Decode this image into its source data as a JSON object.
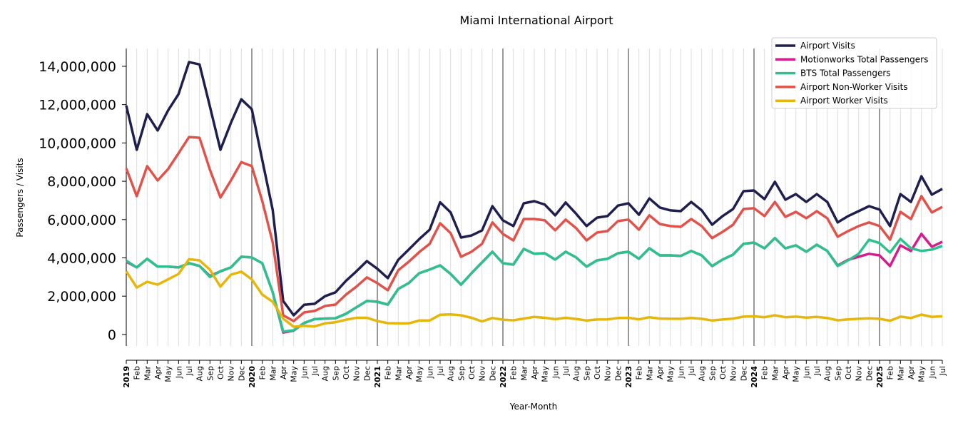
{
  "chart_data": {
    "type": "line",
    "title": "Miami International Airport",
    "xlabel": "Year-Month",
    "ylabel": "Passengers / Visits",
    "ylim": [
      -600000,
      14930000
    ],
    "yticks": [
      0,
      2000000,
      4000000,
      6000000,
      8000000,
      10000000,
      12000000,
      14000000
    ],
    "ytick_labels": [
      "0",
      "2,000,000",
      "4,000,000",
      "6,000,000",
      "8,000,000",
      "10,000,000",
      "12,000,000",
      "14,000,000"
    ],
    "x_start": "2019-01",
    "x_end": "2025-07",
    "x_tick_labels": [
      "2019",
      "Feb",
      "Mar",
      "Apr",
      "May",
      "Jun",
      "Jul",
      "Aug",
      "Sep",
      "Oct",
      "Nov",
      "Dec",
      "2020",
      "Feb",
      "Mar",
      "Apr",
      "May",
      "Jun",
      "Jul",
      "Aug",
      "Sep",
      "Oct",
      "Nov",
      "Dec",
      "2021",
      "Feb",
      "Mar",
      "Apr",
      "May",
      "Jun",
      "Jul",
      "Aug",
      "Sep",
      "Oct",
      "Nov",
      "Dec",
      "2022",
      "Feb",
      "Mar",
      "Apr",
      "May",
      "Jun",
      "Jul",
      "Aug",
      "Sep",
      "Oct",
      "Nov",
      "Dec",
      "2023",
      "Feb",
      "Mar",
      "Apr",
      "May",
      "Jun",
      "Jul",
      "Aug",
      "Sep",
      "Oct",
      "Nov",
      "Dec",
      "2024",
      "Feb",
      "Mar",
      "Apr",
      "May",
      "Jun",
      "Jul",
      "Aug",
      "Sep",
      "Oct",
      "Nov",
      "Dec",
      "2025",
      "Feb",
      "Mar",
      "Apr",
      "May",
      "Jun",
      "Jul"
    ],
    "grid": "vertical monthly, year separators",
    "legend_position": "top-right",
    "series": [
      {
        "name": "Airport Visits",
        "color": "#1f1f4f",
        "values": [
          11950000,
          9640000,
          11500000,
          10650000,
          11700000,
          12550000,
          14220000,
          14100000,
          11900000,
          9640000,
          11050000,
          12280000,
          11760000,
          9100000,
          6500000,
          1750000,
          1000000,
          1550000,
          1600000,
          2000000,
          2200000,
          2800000,
          3300000,
          3830000,
          3430000,
          2940000,
          3900000,
          4430000,
          4980000,
          5470000,
          6900000,
          6370000,
          5060000,
          5170000,
          5430000,
          6700000,
          5960000,
          5660000,
          6850000,
          6960000,
          6780000,
          6220000,
          6890000,
          6300000,
          5660000,
          6100000,
          6180000,
          6730000,
          6850000,
          6250000,
          7100000,
          6630000,
          6480000,
          6440000,
          6920000,
          6480000,
          5730000,
          6180000,
          6550000,
          7480000,
          7520000,
          7070000,
          7970000,
          7040000,
          7330000,
          6920000,
          7330000,
          6920000,
          5850000,
          6180000,
          6440000,
          6700000,
          6520000,
          5660000,
          7330000,
          6920000,
          8260000,
          7300000,
          7600000
        ]
      },
      {
        "name": "Motionworks Total Passengers",
        "color": "#d81b8c",
        "values": [
          3800000,
          3500000,
          3950000,
          3540000,
          3540000,
          3500000,
          3720000,
          3580000,
          3050000,
          3300000,
          3500000,
          4060000,
          4020000,
          3720000,
          2200000,
          100000,
          200000,
          600000,
          800000,
          830000,
          850000,
          1080000,
          1420000,
          1750000,
          1710000,
          1560000,
          2380000,
          2680000,
          3200000,
          3390000,
          3610000,
          3160000,
          2600000,
          3200000,
          3760000,
          4320000,
          3720000,
          3650000,
          4470000,
          4210000,
          4240000,
          3910000,
          4320000,
          4020000,
          3540000,
          3870000,
          3950000,
          4240000,
          4320000,
          3950000,
          4500000,
          4130000,
          4130000,
          4100000,
          4360000,
          4130000,
          3570000,
          3910000,
          4170000,
          4730000,
          4800000,
          4500000,
          5030000,
          4500000,
          4650000,
          4320000,
          4690000,
          4360000,
          3600000,
          3900000,
          4060000,
          4210000,
          4130000,
          3570000,
          4650000,
          4360000,
          5250000,
          4580000,
          4840000
        ]
      },
      {
        "name": "BTS Total Passengers",
        "color": "#2bc28e",
        "values": [
          3850000,
          3500000,
          3950000,
          3540000,
          3540000,
          3500000,
          3720000,
          3580000,
          3000000,
          3300000,
          3500000,
          4060000,
          4020000,
          3720000,
          2200000,
          150000,
          220000,
          600000,
          800000,
          830000,
          850000,
          1080000,
          1420000,
          1750000,
          1710000,
          1560000,
          2380000,
          2680000,
          3200000,
          3390000,
          3610000,
          3160000,
          2600000,
          3200000,
          3760000,
          4320000,
          3720000,
          3650000,
          4470000,
          4210000,
          4240000,
          3910000,
          4320000,
          4020000,
          3540000,
          3870000,
          3950000,
          4240000,
          4320000,
          3950000,
          4500000,
          4130000,
          4130000,
          4100000,
          4360000,
          4130000,
          3570000,
          3910000,
          4170000,
          4730000,
          4800000,
          4500000,
          5030000,
          4500000,
          4650000,
          4320000,
          4690000,
          4360000,
          3570000,
          3870000,
          4210000,
          4950000,
          4770000,
          4280000,
          4990000,
          4500000,
          4360000,
          4430000,
          4620000
        ]
      },
      {
        "name": "Airport Non-Worker Visits",
        "color": "#e0524a",
        "values": [
          8670000,
          7220000,
          8790000,
          8040000,
          8640000,
          9460000,
          10310000,
          10270000,
          8600000,
          7150000,
          8040000,
          9000000,
          8790000,
          6960000,
          4800000,
          1000000,
          700000,
          1150000,
          1230000,
          1490000,
          1560000,
          2080000,
          2500000,
          2980000,
          2680000,
          2310000,
          3350000,
          3800000,
          4300000,
          4730000,
          5810000,
          5290000,
          4060000,
          4320000,
          4730000,
          5850000,
          5250000,
          4910000,
          6030000,
          6030000,
          5960000,
          5440000,
          6000000,
          5550000,
          4910000,
          5320000,
          5400000,
          5920000,
          6000000,
          5470000,
          6220000,
          5770000,
          5660000,
          5620000,
          6030000,
          5660000,
          5030000,
          5360000,
          5730000,
          6550000,
          6590000,
          6180000,
          6920000,
          6140000,
          6400000,
          6070000,
          6440000,
          6070000,
          5100000,
          5400000,
          5660000,
          5850000,
          5660000,
          4950000,
          6400000,
          6030000,
          7220000,
          6370000,
          6660000
        ]
      },
      {
        "name": "Airport Worker Visits",
        "color": "#e6b70a",
        "values": [
          3300000,
          2450000,
          2750000,
          2600000,
          2880000,
          3160000,
          3930000,
          3870000,
          3380000,
          2500000,
          3120000,
          3280000,
          2880000,
          2080000,
          1710000,
          830000,
          400000,
          450000,
          420000,
          580000,
          640000,
          770000,
          870000,
          870000,
          700000,
          590000,
          580000,
          580000,
          730000,
          730000,
          1030000,
          1050000,
          1000000,
          870000,
          680000,
          860000,
          770000,
          740000,
          830000,
          920000,
          870000,
          800000,
          870000,
          810000,
          730000,
          780000,
          790000,
          860000,
          870000,
          790000,
          900000,
          830000,
          820000,
          820000,
          860000,
          820000,
          730000,
          780000,
          830000,
          930000,
          950000,
          900000,
          1000000,
          900000,
          930000,
          880000,
          920000,
          860000,
          740000,
          790000,
          820000,
          840000,
          820000,
          720000,
          930000,
          860000,
          1040000,
          920000,
          950000
        ]
      }
    ]
  }
}
